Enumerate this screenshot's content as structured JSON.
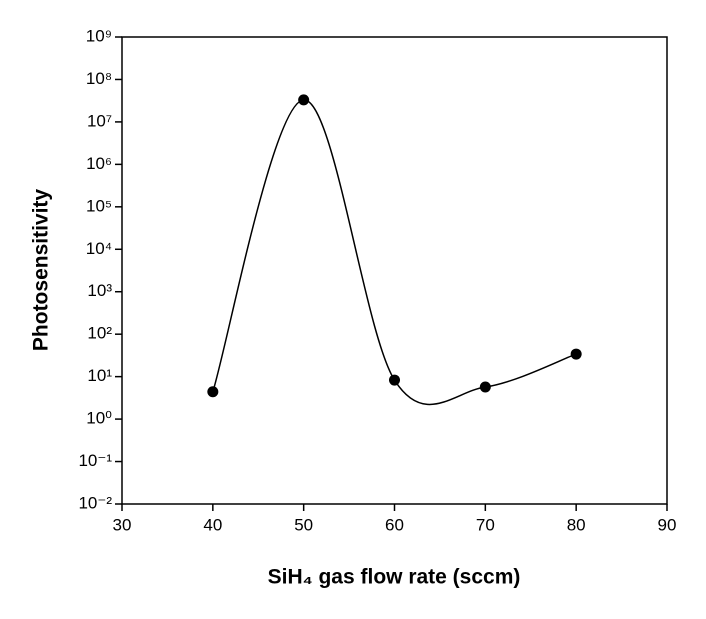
{
  "chart_data": {
    "type": "scatter",
    "x_label": "SiH₄ gas flow rate (sccm)",
    "y_label": "Photosensitivity",
    "x": [
      40,
      50,
      60,
      70,
      80
    ],
    "series": [
      {
        "color": "#000000",
        "values": [
          4.4,
          33000000,
          8.3,
          5.7,
          34
        ]
      }
    ],
    "xlim": [
      30,
      90
    ],
    "xticks": [
      30,
      40,
      50,
      60,
      70,
      80,
      90
    ],
    "ylim": [
      0.01,
      1000000000
    ],
    "log_y": true,
    "smooth_line": true,
    "yticks": [
      {
        "value": 0.01,
        "label": "10⁻²"
      },
      {
        "value": 0.1,
        "label": "10⁻¹"
      },
      {
        "value": 1,
        "label": "10⁰"
      },
      {
        "value": 10,
        "label": "10¹"
      },
      {
        "value": 100,
        "label": "10²"
      },
      {
        "value": 1000,
        "label": "10³"
      },
      {
        "value": 10000,
        "label": "10⁴"
      },
      {
        "value": 100000,
        "label": "10⁵"
      },
      {
        "value": 1000000,
        "label": "10⁶"
      },
      {
        "value": 10000000,
        "label": "10⁷"
      },
      {
        "value": 100000000,
        "label": "10⁸"
      },
      {
        "value": 1000000000,
        "label": "10⁹"
      }
    ]
  }
}
